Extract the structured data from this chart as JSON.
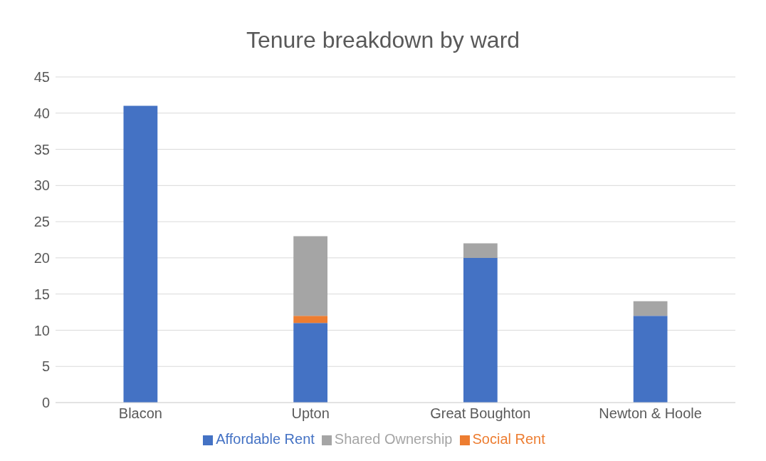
{
  "chart_data": {
    "type": "bar",
    "title": "Tenure breakdown by ward",
    "categories": [
      "Blacon",
      "Upton",
      "Great Boughton",
      "Newton & Hoole"
    ],
    "stacked": true,
    "series": [
      {
        "name": "Affordable Rent",
        "color": "#4472c4",
        "values": [
          41,
          11,
          20,
          12
        ]
      },
      {
        "name": "Social Rent",
        "color": "#ed7d31",
        "values": [
          0,
          1,
          0,
          0
        ]
      },
      {
        "name": "Shared Ownership",
        "color": "#a5a5a5",
        "values": [
          0,
          11,
          2,
          2
        ]
      }
    ],
    "ylim": [
      0,
      45
    ],
    "yticks": [
      0,
      5,
      10,
      15,
      20,
      25,
      30,
      35,
      40,
      45
    ],
    "grid": "y",
    "legend": "bottom"
  }
}
